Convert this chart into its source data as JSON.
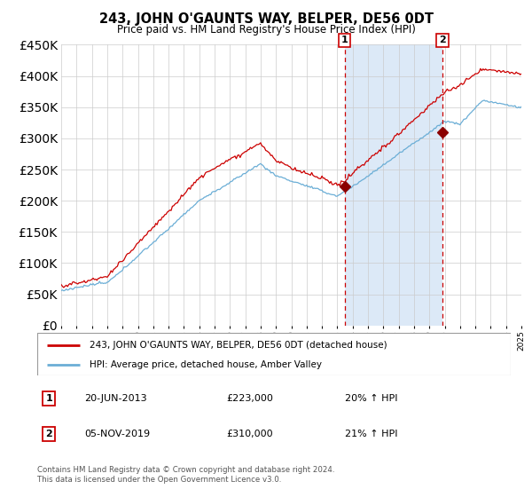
{
  "title": "243, JOHN O'GAUNTS WAY, BELPER, DE56 0DT",
  "subtitle": "Price paid vs. HM Land Registry's House Price Index (HPI)",
  "legend_line1": "243, JOHN O'GAUNTS WAY, BELPER, DE56 0DT (detached house)",
  "legend_line2": "HPI: Average price, detached house, Amber Valley",
  "annotation1_date": "20-JUN-2013",
  "annotation1_price": "£223,000",
  "annotation1_hpi": "20% ↑ HPI",
  "annotation2_date": "05-NOV-2019",
  "annotation2_price": "£310,000",
  "annotation2_hpi": "21% ↑ HPI",
  "footer": "Contains HM Land Registry data © Crown copyright and database right 2024.\nThis data is licensed under the Open Government Licence v3.0.",
  "hpi_color": "#6baed6",
  "price_color": "#cc0000",
  "marker_color": "#8b0000",
  "annotation_box_color": "#cc0000",
  "vline_color": "#cc0000",
  "highlight_fill": "#dce9f7",
  "grid_color": "#cccccc",
  "ylim": [
    0,
    450000
  ],
  "yticks": [
    0,
    50000,
    100000,
    150000,
    200000,
    250000,
    300000,
    350000,
    400000,
    450000
  ],
  "year_start": 1995,
  "year_end": 2025,
  "sale1_year": 2013.47,
  "sale1_price": 223000,
  "sale2_year": 2019.85,
  "sale2_price": 310000
}
